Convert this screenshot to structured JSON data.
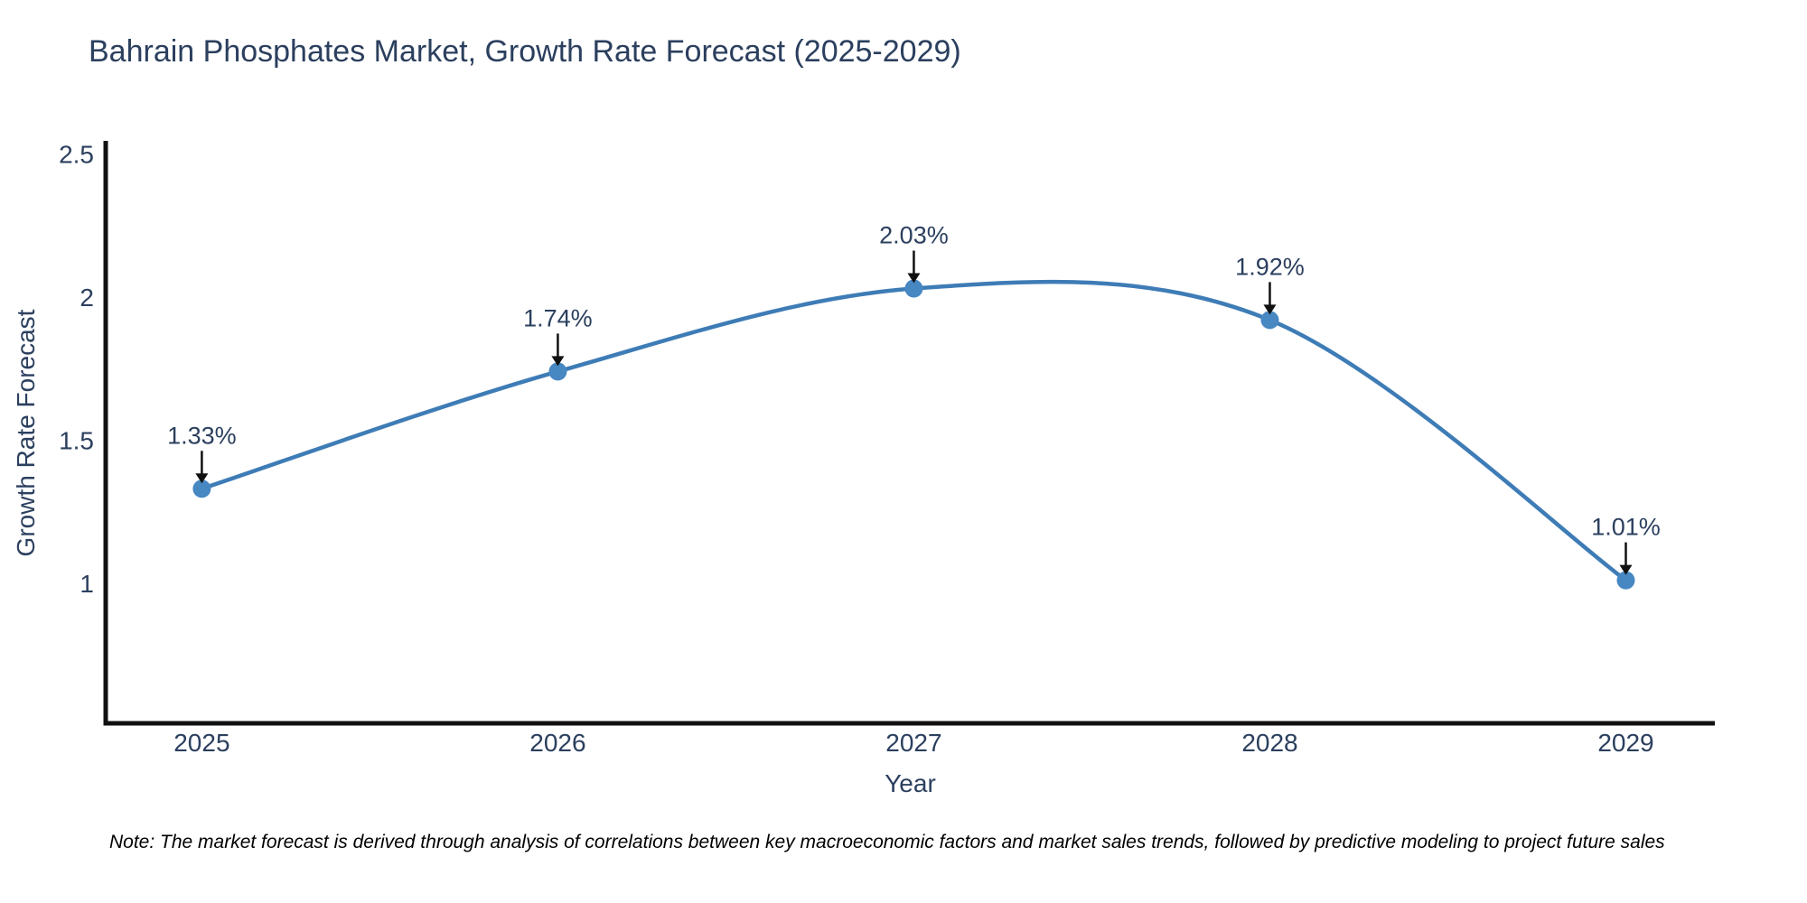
{
  "figure": {
    "note": "Note: The market forecast is derived through analysis of correlations between key macroeconomic factors and market sales trends, followed by predictive modeling to project future sales"
  },
  "chart_data": {
    "type": "line",
    "title": "Bahrain Phosphates Market, Growth Rate Forecast (2025-2029)",
    "xlabel": "Year",
    "ylabel": "Growth Rate Forecast",
    "categories": [
      "2025",
      "2026",
      "2027",
      "2028",
      "2029"
    ],
    "x": [
      2025,
      2026,
      2027,
      2028,
      2029
    ],
    "values": [
      1.33,
      1.74,
      2.03,
      1.92,
      1.01
    ],
    "point_labels": [
      "1.33%",
      "1.74%",
      "2.03%",
      "1.92%",
      "1.01%"
    ],
    "yticks": [
      1,
      1.5,
      2,
      2.5
    ],
    "ytick_labels": [
      "1",
      "1.5",
      "2",
      "2.5"
    ],
    "xlim": [
      2024.73,
      2029.25
    ],
    "ylim": [
      0.51,
      2.54
    ],
    "line_shape": "spline",
    "grid": false,
    "legend_position": "none",
    "colors": {
      "line": "#3e7cb6",
      "marker": "#4787c2",
      "axis": "#111111",
      "text": "#2b3f5e",
      "annotation_arrow": "#111111",
      "note_text": "#000000",
      "background": "#ffffff"
    }
  }
}
